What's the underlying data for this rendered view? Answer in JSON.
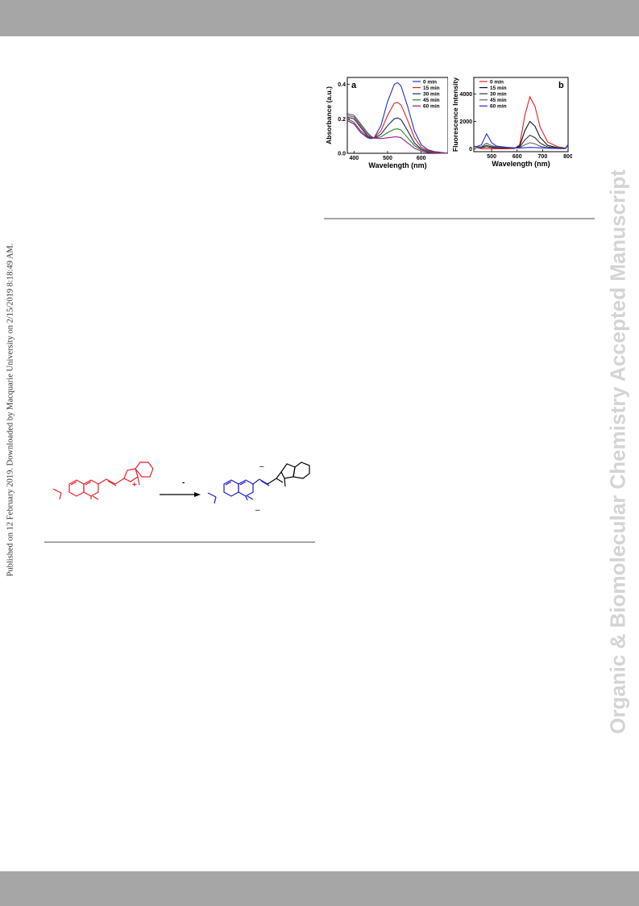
{
  "sidebar": {
    "publication_note": "Published on 12 February 2019. Downloaded by Macquarie University on 2/15/2019 8:18:49 AM.",
    "journal_watermark": "Organic & Biomolecular Chemistry Accepted Manuscript"
  },
  "colors": {
    "header_bar": "#a6a6a6",
    "watermark": "#d4d4d4",
    "reactant": "#e8202a",
    "product": "#1c1ccc"
  },
  "scheme": {
    "arrow_label": "-",
    "plus_charge": "+",
    "product_charges": [
      "–",
      "–"
    ]
  },
  "chart_data": [
    {
      "type": "line",
      "panel_label": "a",
      "xlabel": "Wavelength (nm)",
      "ylabel": "Absorbance (a.u.)",
      "xlim": [
        380,
        680
      ],
      "ylim": [
        0,
        0.44
      ],
      "xticks": [
        400,
        500,
        600
      ],
      "yticks": [
        0.0,
        0.2,
        0.4
      ],
      "ytick_labels": [
        "0.0",
        "0.2",
        "0.4"
      ],
      "legend_position": "top-right",
      "x": [
        380,
        400,
        420,
        440,
        450,
        460,
        480,
        500,
        520,
        530,
        540,
        560,
        580,
        600,
        620,
        640,
        660,
        680
      ],
      "series": [
        {
          "name": "0 min",
          "color": "#1c2fd6",
          "values": [
            0.19,
            0.17,
            0.12,
            0.09,
            0.085,
            0.09,
            0.16,
            0.3,
            0.4,
            0.41,
            0.39,
            0.27,
            0.13,
            0.05,
            0.02,
            0.01,
            0.005,
            0.0
          ]
        },
        {
          "name": "15 min",
          "color": "#e02020",
          "values": [
            0.2,
            0.18,
            0.13,
            0.095,
            0.088,
            0.09,
            0.13,
            0.22,
            0.29,
            0.295,
            0.28,
            0.19,
            0.09,
            0.035,
            0.015,
            0.008,
            0.004,
            0.0
          ]
        },
        {
          "name": "30 min",
          "color": "#202060",
          "values": [
            0.21,
            0.2,
            0.15,
            0.1,
            0.09,
            0.088,
            0.11,
            0.16,
            0.2,
            0.205,
            0.195,
            0.13,
            0.06,
            0.025,
            0.01,
            0.005,
            0.003,
            0.0
          ]
        },
        {
          "name": "45 min",
          "color": "#1a8a1a",
          "values": [
            0.22,
            0.21,
            0.16,
            0.11,
            0.095,
            0.088,
            0.095,
            0.12,
            0.14,
            0.142,
            0.135,
            0.09,
            0.045,
            0.02,
            0.008,
            0.004,
            0.002,
            0.0
          ]
        },
        {
          "name": "60 min",
          "color": "#9a1a9a",
          "values": [
            0.23,
            0.22,
            0.17,
            0.12,
            0.1,
            0.088,
            0.085,
            0.09,
            0.095,
            0.095,
            0.09,
            0.06,
            0.03,
            0.012,
            0.005,
            0.003,
            0.001,
            0.0
          ]
        }
      ]
    },
    {
      "type": "line",
      "panel_label": "b",
      "xlabel": "Wavelength (nm)",
      "ylabel": "Fluorescence Intensity",
      "xlim": [
        430,
        800
      ],
      "ylim": [
        -200,
        5200
      ],
      "xticks": [
        500,
        600,
        700,
        800
      ],
      "yticks": [
        0,
        2000,
        4000
      ],
      "legend_position": "top-left",
      "x": [
        430,
        440,
        460,
        470,
        480,
        490,
        500,
        520,
        560,
        590,
        610,
        630,
        650,
        670,
        690,
        720,
        760,
        790,
        800
      ],
      "series": [
        {
          "name": "0 min",
          "color": "#e02020",
          "values": [
            200,
            100,
            20,
            10,
            10,
            10,
            10,
            10,
            10,
            30,
            300,
            2400,
            3800,
            3100,
            1600,
            500,
            150,
            60,
            300
          ]
        },
        {
          "name": "15 min",
          "color": "#111111",
          "values": [
            200,
            120,
            90,
            120,
            150,
            120,
            100,
            80,
            60,
            50,
            200,
            1300,
            2000,
            1650,
            850,
            260,
            80,
            50,
            300
          ]
        },
        {
          "name": "30 min",
          "color": "#333333",
          "values": [
            200,
            130,
            120,
            200,
            260,
            200,
            160,
            120,
            80,
            60,
            120,
            650,
            1000,
            820,
            430,
            140,
            50,
            40,
            300
          ]
        },
        {
          "name": "45 min",
          "color": "#666666",
          "values": [
            200,
            140,
            160,
            300,
            420,
            320,
            240,
            160,
            100,
            70,
            90,
            300,
            450,
            370,
            200,
            70,
            30,
            30,
            300
          ]
        },
        {
          "name": "60 min",
          "color": "#1c2fd6",
          "values": [
            200,
            160,
            300,
            700,
            1100,
            800,
            450,
            200,
            120,
            80,
            70,
            90,
            110,
            100,
            80,
            50,
            30,
            30,
            300
          ]
        }
      ]
    }
  ]
}
